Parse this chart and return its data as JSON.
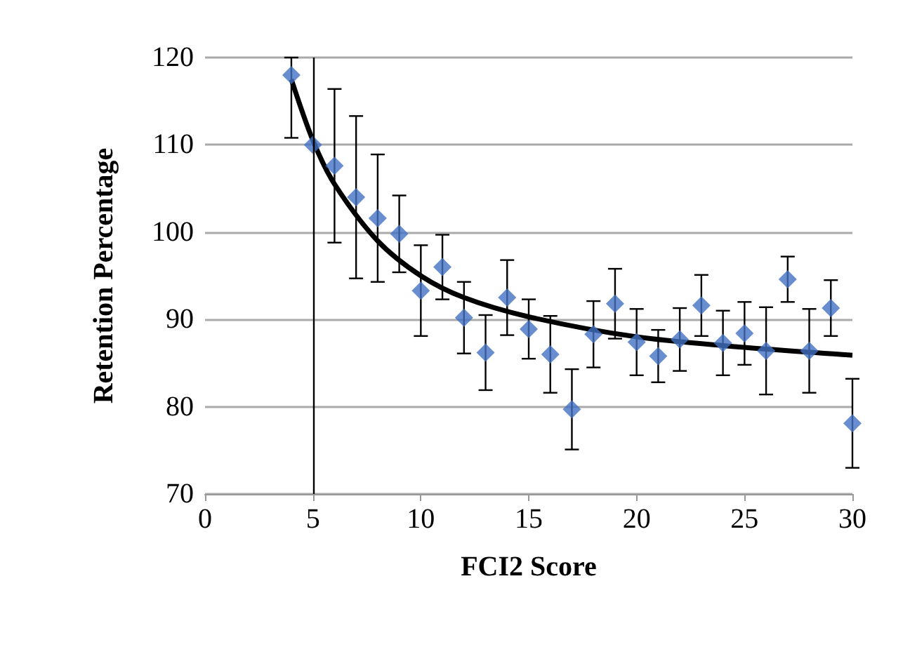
{
  "chart_data": {
    "type": "scatter",
    "xlabel": "FCI2 Score",
    "ylabel": "Retention Percentage",
    "x": [
      4,
      5,
      6,
      7,
      8,
      9,
      10,
      11,
      12,
      13,
      14,
      15,
      16,
      17,
      18,
      19,
      20,
      21,
      22,
      23,
      24,
      25,
      26,
      27,
      28,
      29,
      30
    ],
    "series": [
      {
        "color": "#4472c4",
        "marker": "diamond",
        "values": [
          118,
          110,
          107.6,
          104,
          101.6,
          99.8,
          93.3,
          96,
          90.2,
          86.2,
          92.5,
          88.9,
          86,
          79.7,
          88.3,
          91.8,
          87.4,
          85.8,
          87.7,
          91.6,
          87.3,
          88.4,
          86.4,
          94.6,
          86.4,
          91.3,
          78.1
        ],
        "errors": [
          [
            110.8,
            120
          ],
          null,
          8.8,
          9.3,
          7.3,
          4.4,
          5.2,
          3.7,
          4.1,
          4.3,
          4.3,
          3.4,
          4.4,
          4.6,
          3.8,
          4,
          3.8,
          3,
          3.6,
          3.5,
          3.7,
          3.6,
          5,
          2.6,
          4.8,
          3.2,
          5.1
        ]
      },
      {
        "type": "line",
        "color": "#000000",
        "marker": "none",
        "x": [
          4,
          5,
          6,
          8,
          10,
          12,
          15,
          20,
          25,
          30
        ],
        "values": [
          117.5,
          110.5,
          105.5,
          99,
          95,
          92.5,
          90.3,
          88,
          86.8,
          85.9
        ]
      }
    ],
    "ref_lines": [
      {
        "axis": "x",
        "value": 5,
        "color": "#000000"
      }
    ],
    "xlim": [
      0,
      30
    ],
    "xticks": [
      0,
      5,
      10,
      15,
      20,
      25,
      30
    ],
    "ylim": [
      70,
      120
    ],
    "yticks": [
      70,
      80,
      90,
      100,
      110,
      120
    ],
    "grid": "y"
  }
}
